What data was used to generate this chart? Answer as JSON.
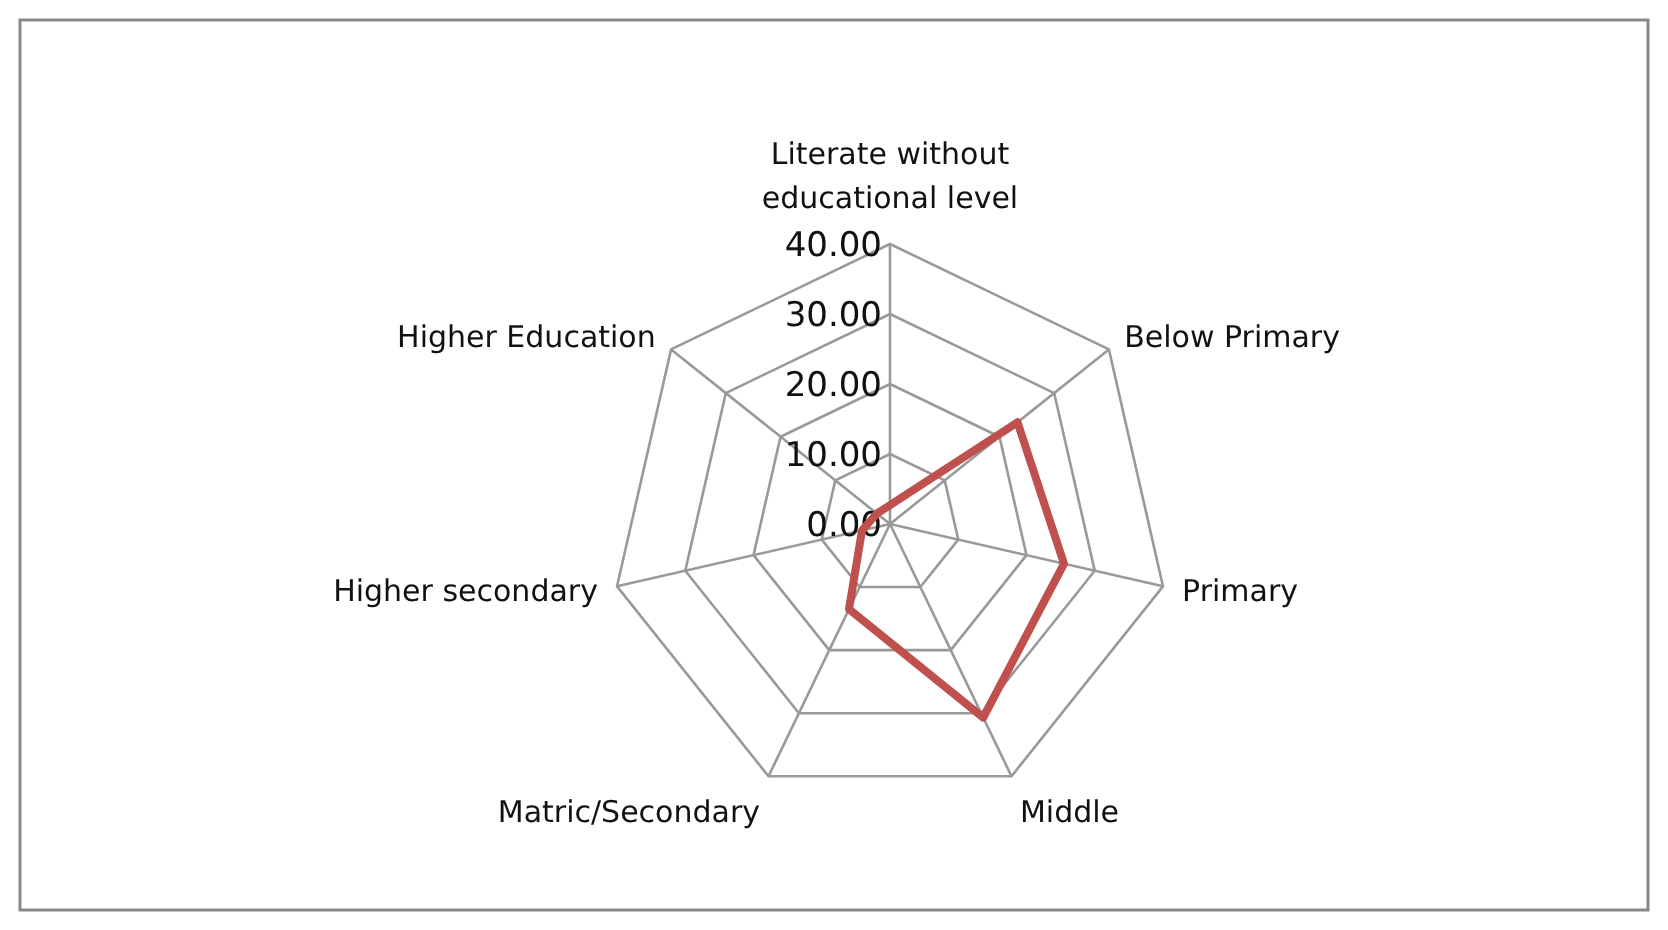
{
  "chart_data": {
    "type": "radar",
    "categories": [
      "Literate without educational level",
      "Below Primary",
      "Primary",
      "Middle",
      "Matric/Secondary",
      "Higher secondary",
      "Higher Education"
    ],
    "series": [
      {
        "color": "#c0504d",
        "values": [
          2.7,
          23.3,
          25.5,
          30.7,
          13.5,
          4.1,
          2.4
        ]
      }
    ],
    "ylim": [
      0,
      40
    ],
    "yticks": [
      {
        "value": 0,
        "label": "0.00"
      },
      {
        "value": 10,
        "label": "10.00"
      },
      {
        "value": 20,
        "label": "20.00"
      },
      {
        "value": 30,
        "label": "30.00"
      },
      {
        "value": 40,
        "label": "40.00"
      }
    ],
    "grid": true,
    "legend": false
  }
}
